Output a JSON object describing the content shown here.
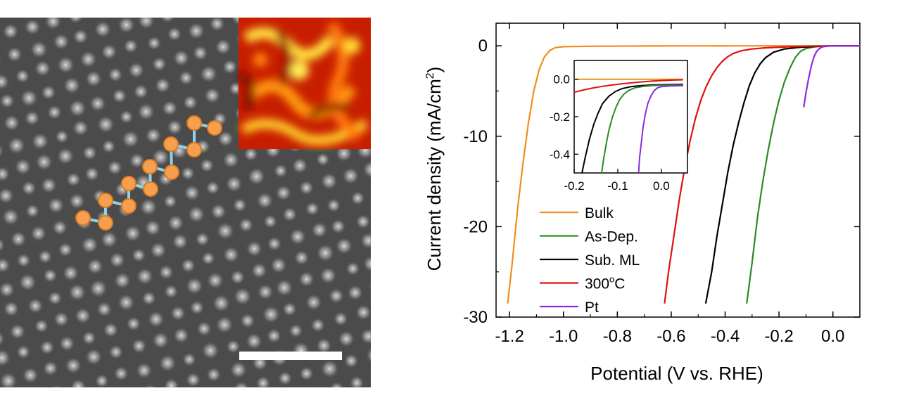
{
  "chart_data": {
    "type": "line",
    "xlabel": "Potential (V vs. RHE)",
    "ylabel_main": "Current density (mA/cm",
    "ylabel_sup": "2",
    "ylabel_close": ")",
    "xlim": [
      -1.25,
      0.1
    ],
    "ylim": [
      -30,
      2.5
    ],
    "xticks": [
      -1.2,
      -1.0,
      -0.8,
      -0.6,
      -0.4,
      -0.2,
      0.0
    ],
    "xtick_labels": [
      "-1.2",
      "-1.0",
      "-0.8",
      "-0.6",
      "-0.4",
      "-0.2",
      "0.0"
    ],
    "yticks": [
      0,
      -10,
      -20,
      -30
    ],
    "ytick_labels": [
      "0",
      "-10",
      "-20",
      "-30"
    ],
    "legend_position": "bottom-left",
    "series": [
      {
        "name": "Bulk",
        "label_main": "Bulk",
        "label_sup": "",
        "color": "#f28c1e",
        "x": [
          -1.207,
          -1.19,
          -1.17,
          -1.15,
          -1.13,
          -1.11,
          -1.09,
          -1.07,
          -1.05,
          -1.03,
          -1.0,
          -0.9,
          -0.7,
          -0.5,
          -0.3,
          -0.1,
          0.0,
          0.1
        ],
        "y": [
          -28.5,
          -24,
          -18,
          -13,
          -8.5,
          -5,
          -2.6,
          -1.2,
          -0.5,
          -0.2,
          -0.1,
          -0.05,
          -0.02,
          -0.01,
          0,
          0,
          0,
          0
        ]
      },
      {
        "name": "As-Dep.",
        "label_main": "As-Dep.",
        "label_sup": "",
        "color": "#2a8a2a",
        "x": [
          -0.32,
          -0.3,
          -0.28,
          -0.26,
          -0.24,
          -0.22,
          -0.2,
          -0.18,
          -0.16,
          -0.14,
          -0.12,
          -0.1,
          -0.07,
          -0.04,
          0.0,
          0.1
        ],
        "y": [
          -28.5,
          -24,
          -19,
          -15,
          -11.5,
          -8.5,
          -6,
          -4,
          -2.5,
          -1.3,
          -0.6,
          -0.3,
          -0.12,
          -0.05,
          0,
          0
        ]
      },
      {
        "name": "Sub. ML",
        "label_main": "Sub. ML",
        "label_sup": "",
        "color": "#000000",
        "x": [
          -0.472,
          -0.45,
          -0.43,
          -0.41,
          -0.39,
          -0.37,
          -0.35,
          -0.33,
          -0.31,
          -0.29,
          -0.27,
          -0.25,
          -0.22,
          -0.18,
          -0.12,
          -0.05,
          0.0,
          0.1
        ],
        "y": [
          -28.5,
          -25,
          -21,
          -17.5,
          -14,
          -11,
          -8.5,
          -6.3,
          -4.4,
          -3,
          -2,
          -1.3,
          -0.7,
          -0.35,
          -0.15,
          -0.05,
          0,
          0
        ]
      },
      {
        "name": "300°C",
        "label_main": "300",
        "label_sup": "o",
        "label_tail": "C",
        "color": "#e01010",
        "x": [
          -0.625,
          -0.61,
          -0.59,
          -0.57,
          -0.55,
          -0.53,
          -0.51,
          -0.49,
          -0.47,
          -0.45,
          -0.43,
          -0.41,
          -0.39,
          -0.37,
          -0.34,
          -0.3,
          -0.25,
          -0.2,
          -0.15,
          -0.1,
          0.0,
          0.1
        ],
        "y": [
          -28.5,
          -25,
          -21,
          -17,
          -13.5,
          -10.5,
          -8,
          -6,
          -4.5,
          -3.3,
          -2.4,
          -1.7,
          -1.2,
          -0.85,
          -0.55,
          -0.35,
          -0.22,
          -0.15,
          -0.1,
          -0.05,
          0,
          0
        ]
      },
      {
        "name": "Pt",
        "label_main": "Pt",
        "label_sup": "",
        "color": "#8a2be2",
        "x": [
          -0.108,
          -0.1,
          -0.09,
          -0.08,
          -0.07,
          -0.06,
          -0.05,
          -0.04,
          -0.02,
          0.0,
          0.05,
          0.1
        ],
        "y": [
          -6.8,
          -5.2,
          -3.6,
          -2.2,
          -1.2,
          -0.6,
          -0.3,
          -0.12,
          -0.04,
          0,
          0,
          0
        ]
      }
    ],
    "inset": {
      "xlim": [
        -0.2,
        0.06
      ],
      "ylim": [
        -0.5,
        0.1
      ],
      "xticks": [
        -0.2,
        -0.1,
        0.0
      ],
      "xtick_labels": [
        "-0.2",
        "-0.1",
        "0.0"
      ],
      "yticks": [
        0.0,
        -0.2,
        -0.4
      ],
      "ytick_labels": [
        "0.0",
        "-0.2",
        "-0.4"
      ],
      "series": [
        {
          "name": "Bulk",
          "color": "#f28c1e",
          "x": [
            -0.2,
            -0.15,
            -0.1,
            -0.05,
            0.0,
            0.05
          ],
          "y": [
            0.0,
            0.0,
            0.0,
            0.0,
            0.0,
            0.0
          ]
        },
        {
          "name": "300°C",
          "color": "#e01010",
          "x": [
            -0.2,
            -0.18,
            -0.16,
            -0.14,
            -0.12,
            -0.1,
            -0.08,
            -0.05,
            -0.02,
            0.02,
            0.05
          ],
          "y": [
            -0.07,
            -0.058,
            -0.048,
            -0.04,
            -0.033,
            -0.027,
            -0.022,
            -0.015,
            -0.01,
            -0.005,
            -0.003
          ]
        },
        {
          "name": "Sub. ML",
          "color": "#000000",
          "x": [
            -0.182,
            -0.175,
            -0.165,
            -0.155,
            -0.145,
            -0.135,
            -0.12,
            -0.105,
            -0.09,
            -0.07,
            -0.05,
            -0.02,
            0.02,
            0.05
          ],
          "y": [
            -0.5,
            -0.42,
            -0.32,
            -0.24,
            -0.18,
            -0.13,
            -0.09,
            -0.065,
            -0.05,
            -0.04,
            -0.035,
            -0.03,
            -0.028,
            -0.027
          ]
        },
        {
          "name": "As-Dep.",
          "color": "#2a8a2a",
          "x": [
            -0.137,
            -0.132,
            -0.126,
            -0.12,
            -0.112,
            -0.104,
            -0.096,
            -0.086,
            -0.075,
            -0.06,
            -0.04,
            -0.02,
            0.0,
            0.03,
            0.05
          ],
          "y": [
            -0.5,
            -0.42,
            -0.34,
            -0.27,
            -0.2,
            -0.15,
            -0.11,
            -0.08,
            -0.06,
            -0.045,
            -0.038,
            -0.034,
            -0.032,
            -0.03,
            -0.03
          ]
        },
        {
          "name": "Pt",
          "color": "#8a2be2",
          "x": [
            -0.052,
            -0.05,
            -0.046,
            -0.042,
            -0.037,
            -0.031,
            -0.024,
            -0.016,
            -0.008,
            0.0,
            0.02,
            0.04,
            0.05
          ],
          "y": [
            -0.5,
            -0.42,
            -0.34,
            -0.26,
            -0.19,
            -0.13,
            -0.09,
            -0.06,
            -0.045,
            -0.04,
            -0.036,
            -0.035,
            -0.035
          ]
        }
      ]
    }
  }
}
